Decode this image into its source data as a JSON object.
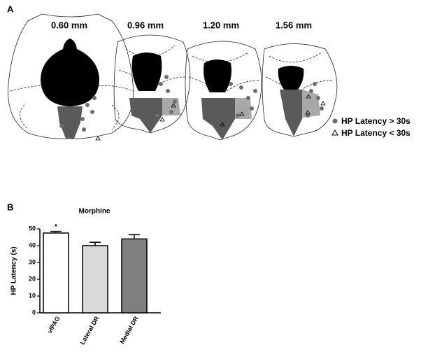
{
  "panel_a": {
    "label": "A",
    "sections": [
      "0.60 mm",
      "0.96 mm",
      "1.20 mm",
      "1.56 mm"
    ],
    "legend": [
      "HP Latency > 30s",
      "HP Latency < 30s"
    ]
  },
  "panel_b": {
    "label": "B"
  },
  "chart_data": {
    "type": "bar",
    "title": "Morphine",
    "y_label": "HP Latency (s)",
    "categories": [
      "vlPAG",
      "Lateral DR",
      "Medial DR"
    ],
    "values": [
      47.5,
      40,
      44
    ],
    "errors": [
      1,
      2,
      2.5
    ],
    "colors": [
      "#ffffff",
      "#d9d9d9",
      "#7f7f7f"
    ],
    "annotation": "*",
    "ylim": [
      0,
      50
    ],
    "yticks": [
      0,
      10,
      20,
      30,
      40,
      50
    ]
  }
}
